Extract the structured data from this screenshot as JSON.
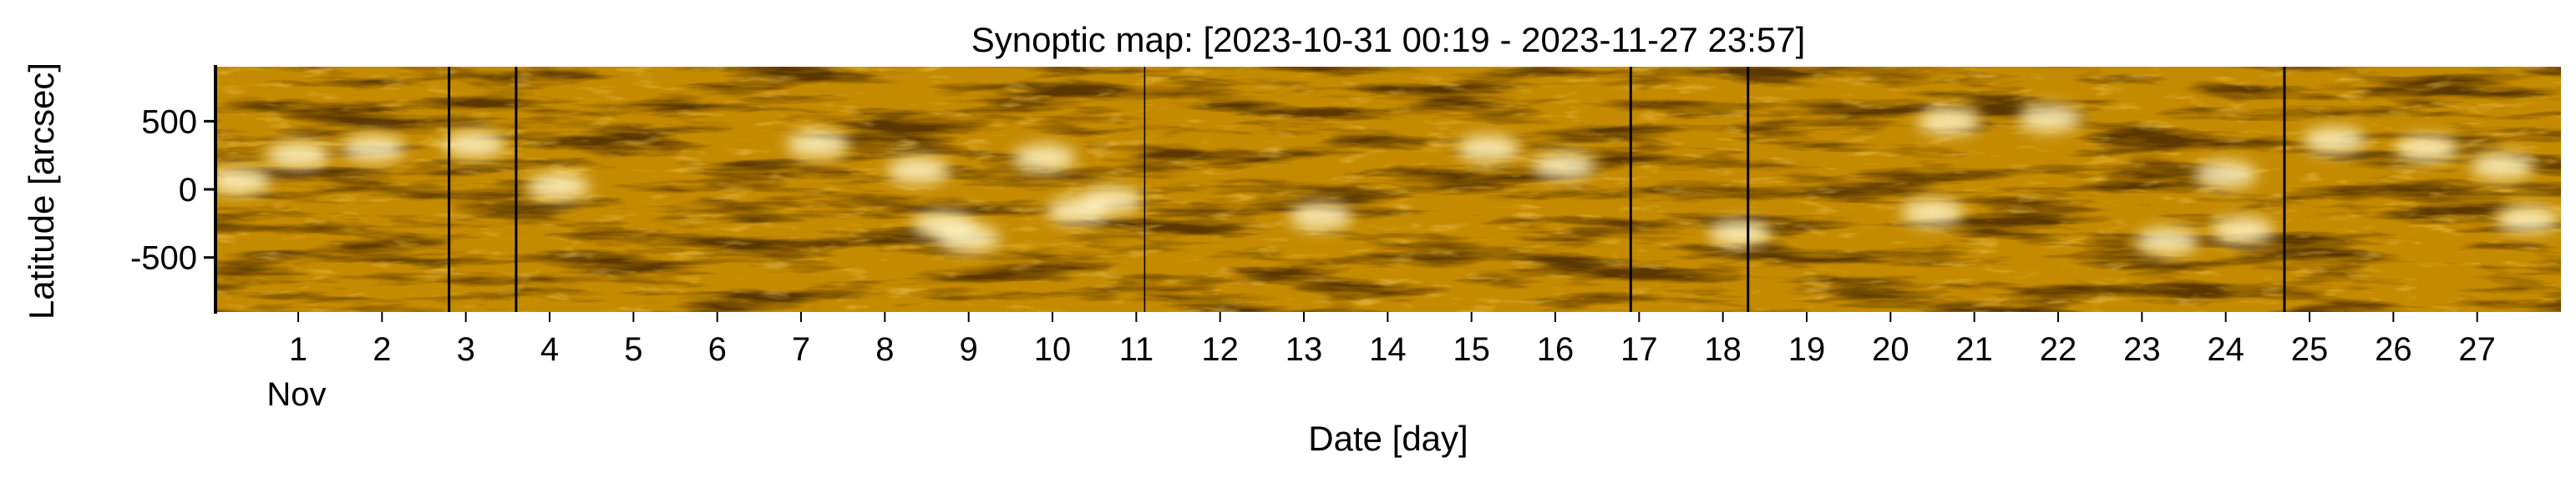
{
  "chart_data": {
    "type": "heatmap",
    "title": "Synoptic map: [2023-10-31 00:19 - 2023-11-27 23:57]",
    "xlabel": "Date [day]",
    "ylabel": "Latitude [arcsec]",
    "x_range": [
      "2023-10-31 00:19",
      "2023-11-27 23:57"
    ],
    "x_tick_values": [
      1,
      2,
      3,
      4,
      5,
      6,
      7,
      8,
      9,
      10,
      11,
      12,
      13,
      14,
      15,
      16,
      17,
      18,
      19,
      20,
      21,
      22,
      23,
      24,
      25,
      26,
      27
    ],
    "x_tick_labels": [
      "1",
      "2",
      "3",
      "4",
      "5",
      "6",
      "7",
      "8",
      "9",
      "10",
      "11",
      "12",
      "13",
      "14",
      "15",
      "16",
      "17",
      "18",
      "19",
      "20",
      "21",
      "22",
      "23",
      "24",
      "25",
      "26",
      "27"
    ],
    "x_month_label": "Nov",
    "ylim": [
      -900,
      900
    ],
    "y_ticks": [
      500,
      0,
      -500
    ],
    "y_tick_labels": [
      "500",
      "0",
      "-500"
    ],
    "data_gaps_day": [
      2.8,
      3.6,
      11.1,
      16.9,
      18.3,
      24.7
    ],
    "colormap": [
      "#1e1000",
      "#5a3800",
      "#9a6800",
      "#c48a00",
      "#dca81c",
      "#f5d560",
      "#fff6c8"
    ],
    "bright_regions": [
      {
        "day": 1.0,
        "lat": 250
      },
      {
        "day": 1.9,
        "lat": 300
      },
      {
        "day": 0.3,
        "lat": 60
      },
      {
        "day": 3.1,
        "lat": 330
      },
      {
        "day": 4.1,
        "lat": 20
      },
      {
        "day": 7.2,
        "lat": 330
      },
      {
        "day": 8.4,
        "lat": 140
      },
      {
        "day": 8.7,
        "lat": -260
      },
      {
        "day": 9.0,
        "lat": -360
      },
      {
        "day": 9.9,
        "lat": 230
      },
      {
        "day": 10.3,
        "lat": -160
      },
      {
        "day": 10.7,
        "lat": -80
      },
      {
        "day": 13.2,
        "lat": -200
      },
      {
        "day": 15.2,
        "lat": 300
      },
      {
        "day": 16.1,
        "lat": 170
      },
      {
        "day": 18.2,
        "lat": -320
      },
      {
        "day": 20.7,
        "lat": 500
      },
      {
        "day": 21.9,
        "lat": 520
      },
      {
        "day": 20.5,
        "lat": -170
      },
      {
        "day": 23.3,
        "lat": -380
      },
      {
        "day": 24.2,
        "lat": -300
      },
      {
        "day": 24.0,
        "lat": 110
      },
      {
        "day": 25.3,
        "lat": 360
      },
      {
        "day": 26.4,
        "lat": 300
      },
      {
        "day": 27.3,
        "lat": 170
      },
      {
        "day": 27.6,
        "lat": -220
      }
    ]
  }
}
